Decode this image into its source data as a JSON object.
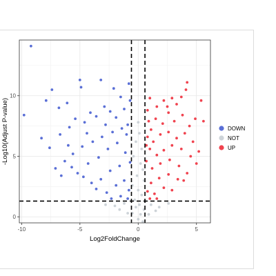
{
  "chart_data": {
    "type": "scatter",
    "title": "",
    "xlabel": "Log2FoldChange",
    "ylabel": "-Log10(Adjust P-value)",
    "xlim": [
      -10.2,
      6.2
    ],
    "ylim": [
      -0.5,
      14.6
    ],
    "x_ticks": [
      -10,
      -5,
      0,
      5
    ],
    "y_ticks": [
      0,
      5,
      10
    ],
    "grid": true,
    "legend_position": "right",
    "thresholds": {
      "log2fc": [
        -0.58,
        0.58
      ],
      "neg_log10_padj": 1.3
    },
    "series": [
      {
        "name": "DOWN",
        "color": "#5a6fd6",
        "points": [
          [
            -9.2,
            14.1
          ],
          [
            -9.8,
            8.4
          ],
          [
            -7.4,
            10.5
          ],
          [
            -7.9,
            9.6
          ],
          [
            -6.8,
            9.0
          ],
          [
            -6.1,
            9.4
          ],
          [
            -5.0,
            11.3
          ],
          [
            -4.9,
            10.7
          ],
          [
            -3.2,
            11.3
          ],
          [
            -2.1,
            10.6
          ],
          [
            -1.5,
            9.9
          ],
          [
            -0.8,
            11.0
          ],
          [
            -8.3,
            6.5
          ],
          [
            -7.6,
            5.7
          ],
          [
            -6.7,
            6.8
          ],
          [
            -5.9,
            7.4
          ],
          [
            -5.4,
            8.1
          ],
          [
            -4.6,
            7.8
          ],
          [
            -4.1,
            8.6
          ],
          [
            -3.6,
            8.3
          ],
          [
            -2.9,
            9.1
          ],
          [
            -2.4,
            8.7
          ],
          [
            -1.9,
            8.2
          ],
          [
            -1.2,
            8.9
          ],
          [
            -0.9,
            7.6
          ],
          [
            -1.4,
            7.3
          ],
          [
            -2.2,
            7.0
          ],
          [
            -3.1,
            6.6
          ],
          [
            -3.9,
            6.2
          ],
          [
            -4.8,
            5.8
          ],
          [
            -5.6,
            5.2
          ],
          [
            -6.3,
            4.6
          ],
          [
            -7.1,
            4.0
          ],
          [
            -5.2,
            3.6
          ],
          [
            -4.3,
            4.4
          ],
          [
            -3.4,
            4.9
          ],
          [
            -2.6,
            5.6
          ],
          [
            -1.8,
            6.1
          ],
          [
            -1.1,
            5.3
          ],
          [
            -0.7,
            4.5
          ],
          [
            -1.6,
            4.2
          ],
          [
            -2.4,
            3.8
          ],
          [
            -3.2,
            3.1
          ],
          [
            -4.0,
            2.8
          ],
          [
            -3.6,
            2.3
          ],
          [
            -2.7,
            2.0
          ],
          [
            -1.9,
            2.6
          ],
          [
            -1.2,
            3.0
          ],
          [
            -0.8,
            2.2
          ],
          [
            -1.5,
            1.7
          ],
          [
            -2.3,
            1.5
          ],
          [
            -0.9,
            1.5
          ],
          [
            -1.0,
            6.8
          ],
          [
            -0.7,
            9.6
          ],
          [
            -2.8,
            7.6
          ],
          [
            -4.4,
            6.9
          ],
          [
            -6.0,
            5.9
          ],
          [
            -5.7,
            4.1
          ],
          [
            -4.7,
            3.3
          ],
          [
            -6.6,
            3.4
          ]
        ]
      },
      {
        "name": "NOT",
        "color": "#cdd3d8",
        "points": [
          [
            0.0,
            7.8
          ],
          [
            0.1,
            6.9
          ],
          [
            -0.2,
            6.2
          ],
          [
            0.3,
            5.6
          ],
          [
            -0.4,
            5.0
          ],
          [
            0.2,
            4.4
          ],
          [
            0.4,
            3.9
          ],
          [
            -0.1,
            3.4
          ],
          [
            0.5,
            3.0
          ],
          [
            -0.5,
            2.6
          ],
          [
            0.0,
            2.2
          ],
          [
            0.3,
            1.8
          ],
          [
            -0.3,
            1.4
          ],
          [
            0.1,
            1.0
          ],
          [
            0.5,
            0.6
          ],
          [
            -0.5,
            0.3
          ],
          [
            0.0,
            -0.2
          ],
          [
            0.2,
            0.2
          ],
          [
            -1.2,
            1.1
          ],
          [
            -2.0,
            0.9
          ],
          [
            -2.8,
            1.0
          ],
          [
            -1.6,
            0.6
          ],
          [
            -0.9,
            0.3
          ],
          [
            1.1,
            1.0
          ],
          [
            1.8,
            0.8
          ],
          [
            2.6,
            1.1
          ],
          [
            1.5,
            0.5
          ],
          [
            0.9,
            0.2
          ],
          [
            -0.2,
            0.8
          ],
          [
            0.4,
            -0.4
          ]
        ]
      },
      {
        "name": "UP",
        "color": "#f0434f",
        "points": [
          [
            4.2,
            11.1
          ],
          [
            5.4,
            9.6
          ],
          [
            3.7,
            9.9
          ],
          [
            4.1,
            10.5
          ],
          [
            2.9,
            9.8
          ],
          [
            3.3,
            9.3
          ],
          [
            2.2,
            9.6
          ],
          [
            1.6,
            9.1
          ],
          [
            1.0,
            9.8
          ],
          [
            0.8,
            8.8
          ],
          [
            5.6,
            7.9
          ],
          [
            4.9,
            8.1
          ],
          [
            4.4,
            7.5
          ],
          [
            3.8,
            8.4
          ],
          [
            3.1,
            7.9
          ],
          [
            2.6,
            8.6
          ],
          [
            2.1,
            7.7
          ],
          [
            1.5,
            8.1
          ],
          [
            1.1,
            7.2
          ],
          [
            0.8,
            6.6
          ],
          [
            1.3,
            6.2
          ],
          [
            1.9,
            6.8
          ],
          [
            2.6,
            7.0
          ],
          [
            3.3,
            6.5
          ],
          [
            4.0,
            6.9
          ],
          [
            4.7,
            6.2
          ],
          [
            5.2,
            5.4
          ],
          [
            4.5,
            5.0
          ],
          [
            3.7,
            5.6
          ],
          [
            2.9,
            5.9
          ],
          [
            2.2,
            5.5
          ],
          [
            1.6,
            5.1
          ],
          [
            1.0,
            5.6
          ],
          [
            0.7,
            4.6
          ],
          [
            1.2,
            4.0
          ],
          [
            1.9,
            4.4
          ],
          [
            2.7,
            4.7
          ],
          [
            3.5,
            4.2
          ],
          [
            4.2,
            3.6
          ],
          [
            3.4,
            3.1
          ],
          [
            2.6,
            3.5
          ],
          [
            1.8,
            3.2
          ],
          [
            1.1,
            2.8
          ],
          [
            0.8,
            2.1
          ],
          [
            1.4,
            1.9
          ],
          [
            2.2,
            2.4
          ],
          [
            2.9,
            2.2
          ],
          [
            1.0,
            1.5
          ],
          [
            1.6,
            1.5
          ],
          [
            0.9,
            7.9
          ],
          [
            0.7,
            5.9
          ],
          [
            2.5,
            9.1
          ],
          [
            3.9,
            3.0
          ],
          [
            5.0,
            4.4
          ]
        ]
      }
    ]
  }
}
